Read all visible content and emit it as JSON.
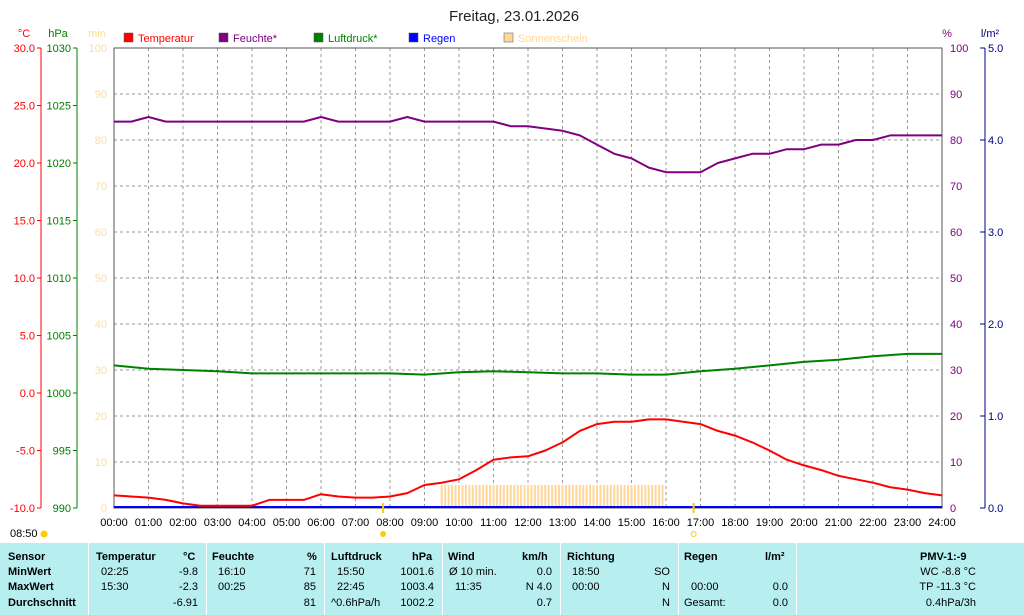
{
  "chart_data": {
    "type": "line",
    "title": "Freitag, 23.01.2026",
    "x_tick_labels": [
      "00:00",
      "01:00",
      "02:00",
      "03:00",
      "04:00",
      "05:00",
      "06:00",
      "07:00",
      "08:00",
      "09:00",
      "10:00",
      "11:00",
      "12:00",
      "13:00",
      "14:00",
      "15:00",
      "16:00",
      "17:00",
      "18:00",
      "19:00",
      "20:00",
      "21:00",
      "22:00",
      "23:00",
      "24:00"
    ],
    "axes": {
      "temperature": {
        "unit": "°C",
        "range": [
          -10,
          30
        ],
        "ticks": [
          "30.0",
          "25.0",
          "20.0",
          "15.0",
          "10.0",
          "5.0",
          "0.0",
          "-5.0",
          "-10.0"
        ],
        "color": "#ff0000"
      },
      "pressure": {
        "unit": "hPa",
        "range": [
          990,
          1030
        ],
        "ticks": [
          "1030",
          "1025",
          "1020",
          "1015",
          "1010",
          "1005",
          "1000",
          "995",
          "990"
        ],
        "color": "#008000"
      },
      "sunshine": {
        "unit": "min",
        "range": [
          0,
          100
        ],
        "ticks": [
          "100",
          "90",
          "80",
          "70",
          "60",
          "50",
          "40",
          "30",
          "20",
          "10",
          "0"
        ],
        "color": "#ffdd99"
      },
      "humidity": {
        "unit": "%",
        "range": [
          0,
          100
        ],
        "ticks": [
          "100",
          "90",
          "80",
          "70",
          "60",
          "50",
          "40",
          "30",
          "20",
          "10",
          "0"
        ],
        "color": "#800080"
      },
      "rain": {
        "unit": "l/m²",
        "range": [
          0,
          5
        ],
        "ticks": [
          "5.0",
          "4.0",
          "3.0",
          "2.0",
          "1.0",
          "0.0"
        ],
        "color": "#000080"
      }
    },
    "legend": [
      {
        "label": "Temperatur",
        "color": "#ff0000"
      },
      {
        "label": "Feuchte*",
        "color": "#800080"
      },
      {
        "label": "Luftdruck*",
        "color": "#008000"
      },
      {
        "label": "Regen",
        "color": "#0000ff"
      },
      {
        "label": "Sonnenschein",
        "color": "#ffd799"
      }
    ],
    "series": [
      {
        "name": "Feuchte*",
        "axis": "humidity",
        "color": "#800080",
        "x": [
          0,
          0.5,
          1,
          1.5,
          2,
          3,
          4,
          4.5,
          5,
          5.5,
          6,
          6.5,
          7,
          8,
          8.5,
          9,
          10,
          11,
          11.5,
          12,
          13,
          13.5,
          14,
          14.5,
          15,
          15.5,
          16,
          16.5,
          17,
          17.5,
          18,
          18.5,
          19,
          19.5,
          20,
          20.5,
          21,
          21.5,
          22,
          22.5,
          23,
          24
        ],
        "y": [
          84,
          84,
          85,
          84,
          84,
          84,
          84,
          84,
          84,
          84,
          85,
          84,
          84,
          84,
          85,
          84,
          84,
          84,
          83,
          83,
          82,
          81,
          79,
          77,
          76,
          74,
          73,
          73,
          73,
          75,
          76,
          77,
          77,
          78,
          78,
          79,
          79,
          80,
          80,
          81,
          81,
          81
        ]
      },
      {
        "name": "Luftdruck*",
        "axis": "pressure",
        "color": "#008000",
        "x": [
          0,
          1,
          2,
          3,
          4,
          5,
          6,
          7,
          8,
          9,
          10,
          11,
          12,
          13,
          14,
          15,
          16,
          17,
          18,
          19,
          20,
          21,
          22,
          23,
          24
        ],
        "y": [
          1002.4,
          1002.1,
          1002.0,
          1001.9,
          1001.7,
          1001.7,
          1001.7,
          1001.7,
          1001.7,
          1001.6,
          1001.8,
          1001.9,
          1001.8,
          1001.7,
          1001.7,
          1001.6,
          1001.6,
          1001.9,
          1002.1,
          1002.4,
          1002.7,
          1002.9,
          1003.2,
          1003.4,
          1003.4
        ]
      },
      {
        "name": "Temperatur",
        "axis": "temperature",
        "color": "#ff0000",
        "x": [
          0,
          1,
          1.5,
          2,
          2.5,
          3,
          4,
          4.5,
          5,
          5.5,
          6,
          6.5,
          7,
          7.5,
          8,
          8.5,
          9,
          9.5,
          10,
          10.5,
          11,
          11.5,
          12,
          12.5,
          13,
          13.5,
          14,
          14.5,
          15,
          15.5,
          16,
          16.5,
          17,
          17.5,
          18,
          18.5,
          19,
          19.5,
          20,
          20.5,
          21,
          21.5,
          22,
          22.5,
          23,
          23.5,
          24
        ],
        "y": [
          -8.9,
          -9.1,
          -9.3,
          -9.6,
          -9.8,
          -9.8,
          -9.8,
          -9.3,
          -9.3,
          -9.3,
          -8.8,
          -9.0,
          -9.1,
          -9.1,
          -9.0,
          -8.7,
          -8.0,
          -7.8,
          -7.5,
          -6.7,
          -5.8,
          -5.6,
          -5.5,
          -5.0,
          -4.3,
          -3.3,
          -2.7,
          -2.5,
          -2.5,
          -2.3,
          -2.3,
          -2.5,
          -2.7,
          -3.3,
          -3.7,
          -4.3,
          -5.0,
          -5.8,
          -6.3,
          -6.7,
          -7.2,
          -7.5,
          -7.8,
          -8.2,
          -8.4,
          -8.7,
          -8.9
        ]
      }
    ],
    "sunshine": {
      "start": 9.5,
      "end": 15.95,
      "level": 5
    },
    "markers": {
      "sunrise": "08:50",
      "sunrise_hour": 7.8,
      "sunset_hour": 16.8
    }
  },
  "stats": {
    "headers": {
      "sensor": "Sensor",
      "temp": "Temperatur",
      "temp_unit": "°C",
      "hum": "Feuchte",
      "hum_unit": "%",
      "press": "Luftdruck",
      "press_unit": "hPa",
      "wind": "Wind",
      "wind_unit": "km/h",
      "dir": "Richtung",
      "rain": "Regen",
      "rain_unit": "l/m²",
      "pmv": "PMV-1:-9"
    },
    "rows": [
      {
        "label": "MinWert",
        "temp_time": "02:25",
        "temp_val": "-9.8",
        "hum_time": "16:10",
        "hum_val": "71",
        "press_time": "15:50",
        "press_val": "1001.6",
        "wind_label": "Ø 10 min.",
        "wind_val": "0.0",
        "dir_time": "18:50",
        "dir_val": "SO",
        "rain_time": "",
        "rain_val": "",
        "pmv": "WC -8.8 °C"
      },
      {
        "label": "MaxWert",
        "temp_time": "15:30",
        "temp_val": "-2.3",
        "hum_time": "00:25",
        "hum_val": "85",
        "press_time": "22:45",
        "press_val": "1003.4",
        "wind_label": "11:35",
        "wind_val": "N 4.0",
        "dir_time": "00:00",
        "dir_val": "N",
        "rain_time": "00:00",
        "rain_val": "0.0",
        "pmv": "TP -11.3 °C"
      },
      {
        "label": "Durchschnitt",
        "temp_time": "",
        "temp_val": "-6.91",
        "hum_time": "",
        "hum_val": "81",
        "press_time": "^0.6hPa/h",
        "press_val": "1002.2",
        "wind_label": "",
        "wind_val": "0.7",
        "dir_time": "",
        "dir_val": "N",
        "rain_time": "Gesamt:",
        "rain_val": "0.0",
        "pmv": "0.4hPa/3h"
      }
    ]
  }
}
